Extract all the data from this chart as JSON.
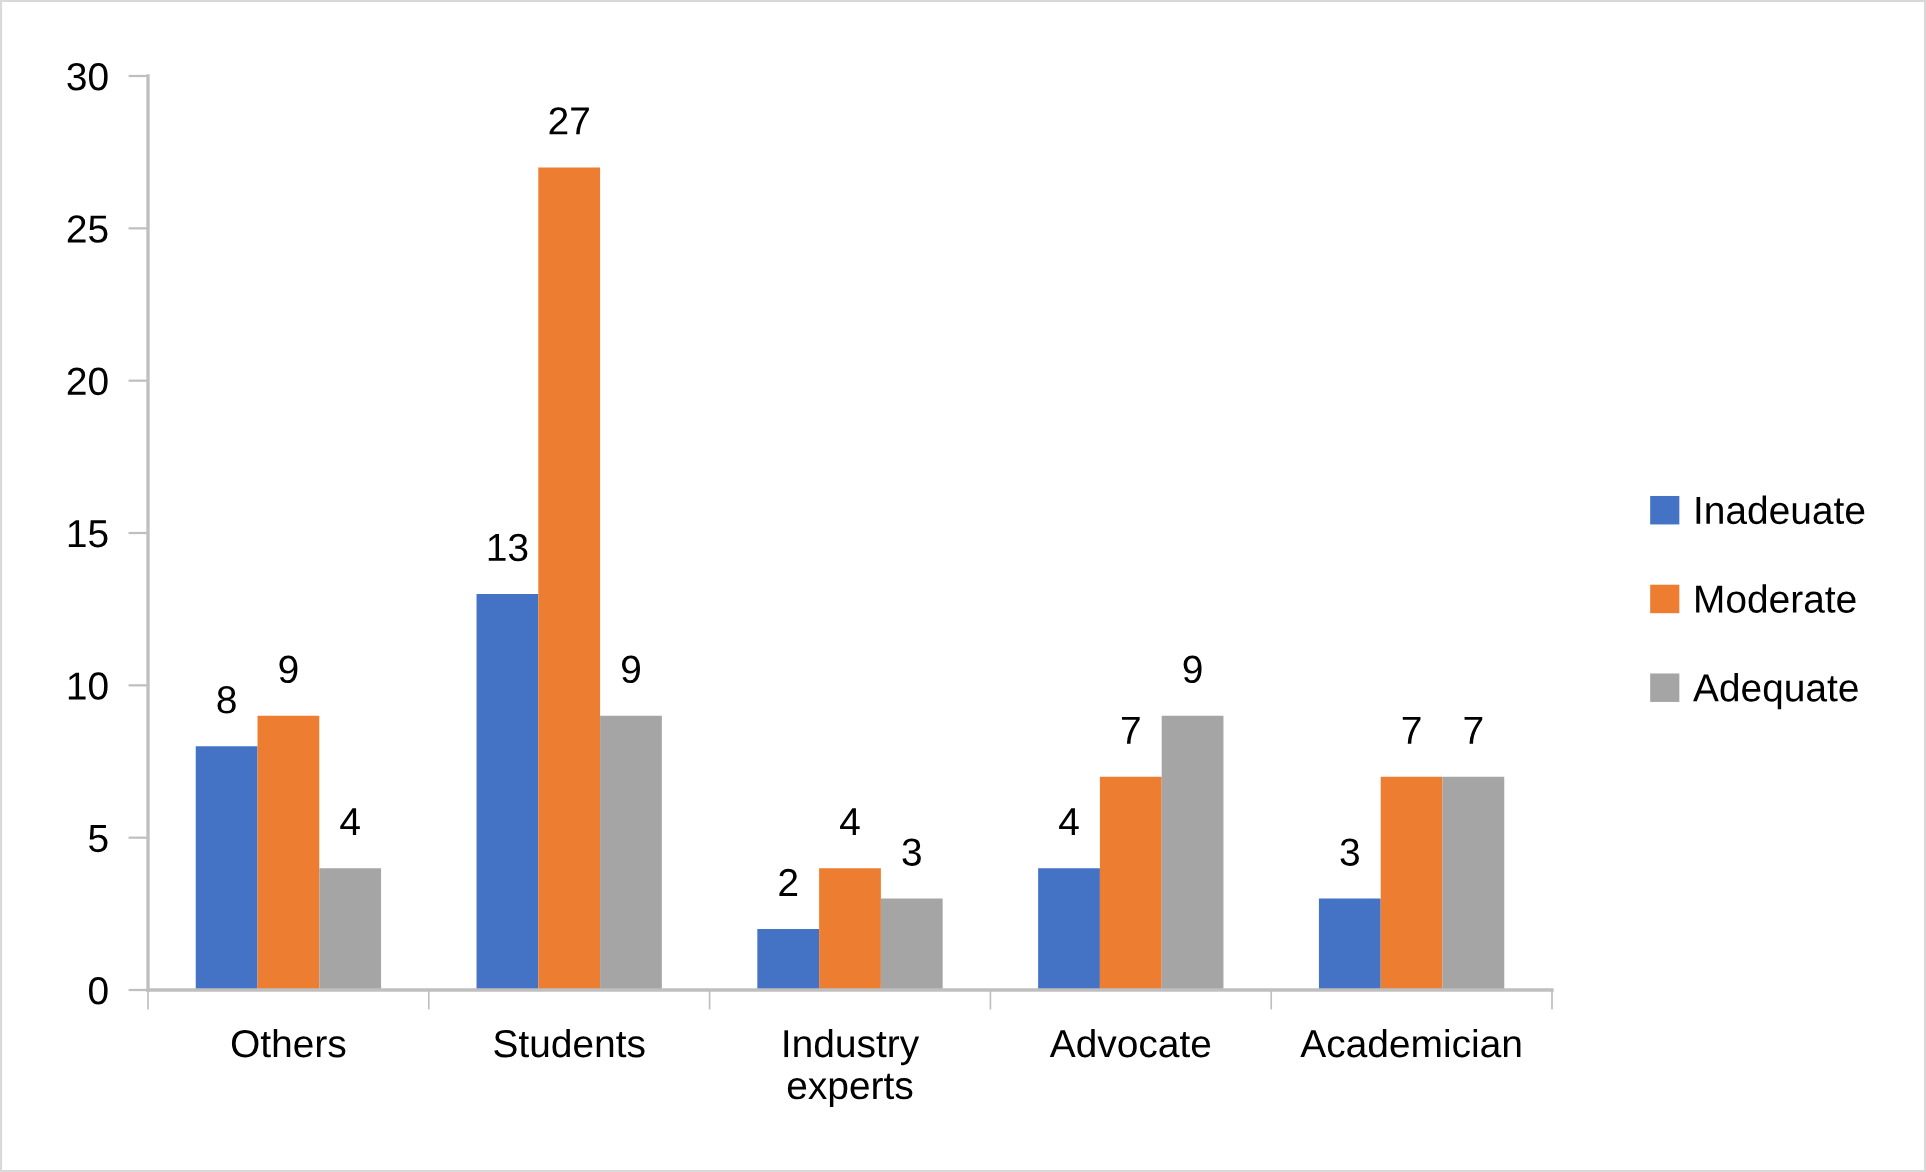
{
  "chart_data": {
    "type": "bar",
    "categories": [
      "Others",
      "Students",
      "Industry\nexperts",
      "Advocate",
      "Academician"
    ],
    "series": [
      {
        "name": "Inadeuate",
        "color": "#4472c4",
        "values": [
          8,
          13,
          2,
          4,
          3
        ]
      },
      {
        "name": "Moderate",
        "color": "#ed7d31",
        "values": [
          9,
          27,
          4,
          7,
          7
        ]
      },
      {
        "name": "Adequate",
        "color": "#a5a5a5",
        "values": [
          4,
          9,
          3,
          9,
          7
        ]
      }
    ],
    "ylim": [
      0,
      30
    ],
    "yticks": [
      0,
      5,
      10,
      15,
      20,
      25,
      30
    ],
    "grid": false,
    "legend": "right",
    "data_labels": true
  }
}
